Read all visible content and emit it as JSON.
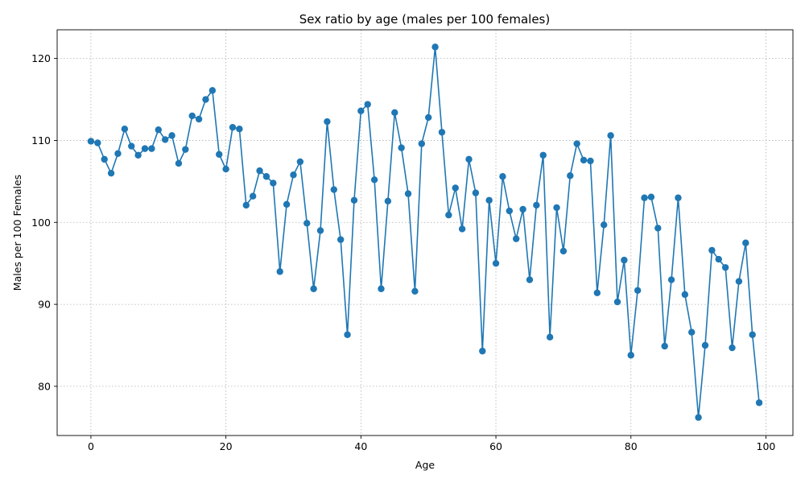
{
  "chart_data": {
    "type": "line",
    "title": "Sex ratio by age (males per 100 females)",
    "xlabel": "Age",
    "ylabel": "Males per 100 Females",
    "xlim": [
      -5,
      104
    ],
    "ylim": [
      74,
      123.5
    ],
    "xticks": [
      0,
      20,
      40,
      60,
      80,
      100
    ],
    "yticks": [
      80,
      90,
      100,
      110,
      120
    ],
    "grid": true,
    "marker": "circle",
    "color": "#1f77b4",
    "series": [
      {
        "x": [
          0,
          1,
          2,
          3,
          4,
          5,
          6,
          7,
          8,
          9,
          10,
          11,
          12,
          13,
          14,
          15,
          16,
          17,
          18,
          19,
          20,
          21,
          22,
          23,
          24,
          25,
          26,
          27,
          28,
          29,
          30,
          31,
          32,
          33,
          34,
          35,
          36,
          37,
          38,
          39,
          40,
          41,
          42,
          43,
          44,
          45,
          46,
          47,
          48,
          49,
          50,
          51,
          52,
          53,
          54,
          55,
          56,
          57,
          58,
          59,
          60,
          61,
          62,
          63,
          64,
          65,
          66,
          67,
          68,
          69,
          70,
          71,
          72,
          73,
          74,
          75,
          76,
          77,
          78,
          79,
          80,
          81,
          82,
          83,
          84,
          85,
          86,
          87,
          88,
          89,
          90,
          91,
          92,
          93,
          94,
          95,
          96,
          97,
          98,
          99
        ],
        "y": [
          109.9,
          109.7,
          107.7,
          106.0,
          108.4,
          111.4,
          109.3,
          108.2,
          109.0,
          109.0,
          111.3,
          110.1,
          110.6,
          107.2,
          108.9,
          113.0,
          112.6,
          115.0,
          116.1,
          108.3,
          106.5,
          111.6,
          111.4,
          102.1,
          103.2,
          106.3,
          105.6,
          104.8,
          94.0,
          102.2,
          105.8,
          107.4,
          99.9,
          91.9,
          99.0,
          112.3,
          104.0,
          97.9,
          86.3,
          102.7,
          113.6,
          114.4,
          105.2,
          91.9,
          102.6,
          113.4,
          109.1,
          103.5,
          91.6,
          109.6,
          112.8,
          121.4,
          111.0,
          100.9,
          104.2,
          99.2,
          107.7,
          103.6,
          84.3,
          102.7,
          95.0,
          105.6,
          101.4,
          98.0,
          101.6,
          93.0,
          102.1,
          108.2,
          86.0,
          101.8,
          96.5,
          105.7,
          109.6,
          107.6,
          107.5,
          91.4,
          99.7,
          110.6,
          90.3,
          95.4,
          83.8,
          91.7,
          103.0,
          103.1,
          99.3,
          84.9,
          93.0,
          103.0,
          91.2,
          86.6,
          76.2,
          85.0,
          96.6,
          95.5,
          94.5,
          84.7,
          92.8,
          97.5,
          86.3,
          78.0
        ]
      }
    ]
  }
}
